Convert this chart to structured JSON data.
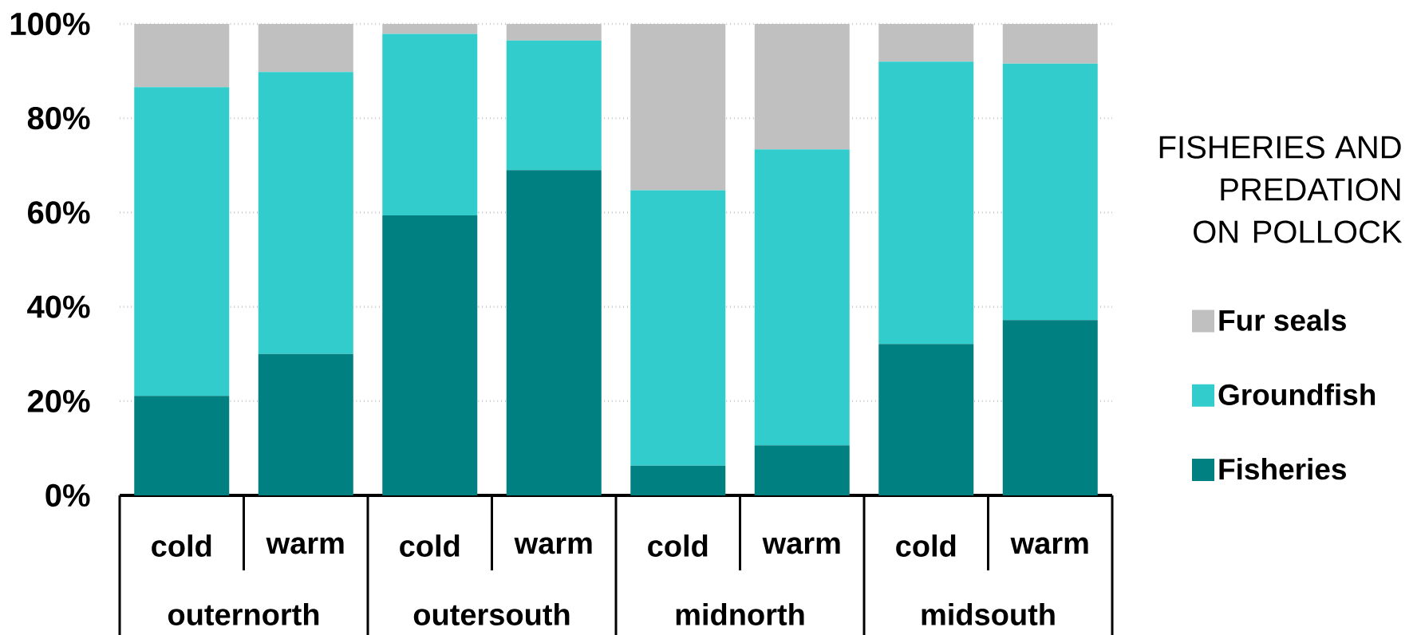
{
  "chart_data": {
    "type": "bar",
    "stacked": true,
    "categories": [
      "cold",
      "warm",
      "cold",
      "warm",
      "cold",
      "warm",
      "cold",
      "warm"
    ],
    "series": [
      {
        "name": "Fisheries",
        "color": "#008080",
        "values": [
          21.1,
          30.0,
          59.4,
          69.0,
          6.3,
          10.6,
          32.1,
          37.2
        ]
      },
      {
        "name": "Groundfish",
        "color": "#33cccc",
        "values": [
          65.5,
          59.8,
          38.5,
          27.5,
          58.4,
          62.8,
          59.9,
          54.4
        ]
      },
      {
        "name": "Fur seals",
        "color": "#c0c0c0",
        "values": [
          13.4,
          10.2,
          2.1,
          3.5,
          35.3,
          26.6,
          8.0,
          8.4
        ]
      }
    ],
    "ylim": [
      0,
      100
    ],
    "yticks": [
      {
        "value": 0,
        "label": "0%"
      },
      {
        "value": 20,
        "label": "20%"
      },
      {
        "value": 40,
        "label": "40%"
      },
      {
        "value": 60,
        "label": "60%"
      },
      {
        "value": 80,
        "label": "80%"
      },
      {
        "value": 100,
        "label": "100%"
      }
    ],
    "grid": "y",
    "legend": "right",
    "legend_title": "FISHERIES AND PREDATION ON POLLOCK",
    "annotations": [
      "outernorth",
      "outersouth",
      "midnorth",
      "midsouth"
    ]
  }
}
